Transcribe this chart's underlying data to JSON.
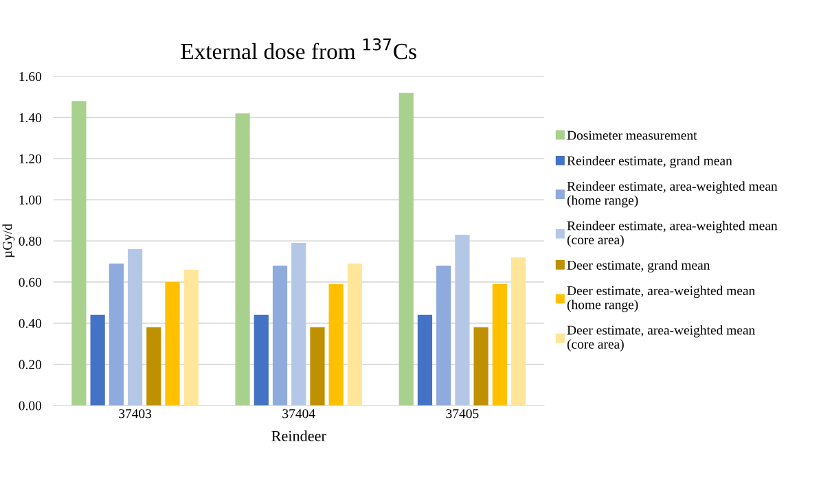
{
  "chart_data": {
    "type": "bar",
    "title": "External dose from $^{137}$Cs",
    "xlabel": "Reindeer",
    "ylabel": "µGy/d",
    "categories": [
      "37403",
      "37404",
      "37405"
    ],
    "series": [
      {
        "name": "Dosimeter measurement",
        "color": "#a9d18e",
        "values": [
          1.48,
          1.42,
          1.52
        ]
      },
      {
        "name": "Reindeer estimate, grand mean",
        "color": "#4472c4",
        "values": [
          0.44,
          0.44,
          0.44
        ]
      },
      {
        "name": "Reindeer estimate, area-weighted mean\n(home range)",
        "color": "#8faadc",
        "values": [
          0.69,
          0.68,
          0.68
        ]
      },
      {
        "name": "Reindeer estimate, area-weighted mean\n(core area)",
        "color": "#b4c7e7",
        "values": [
          0.76,
          0.79,
          0.83
        ]
      },
      {
        "name": "Deer estimate, grand mean",
        "color": "#bf9000",
        "values": [
          0.38,
          0.38,
          0.38
        ]
      },
      {
        "name": "Deer estimate, area-weighted mean\n(home range)",
        "color": "#ffc000",
        "values": [
          0.6,
          0.59,
          0.59
        ]
      },
      {
        "name": "Deer estimate, area-weighted mean\n(core area)",
        "color": "#ffe699",
        "values": [
          0.66,
          0.69,
          0.72
        ]
      }
    ],
    "ylim": [
      0,
      1.6
    ],
    "yticks": [
      {
        "value": 0,
        "label": "0.00"
      },
      {
        "value": 0.2,
        "label": "0.20"
      },
      {
        "value": 0.4,
        "label": "0.40"
      },
      {
        "value": 0.6,
        "label": "0.60"
      },
      {
        "value": 0.8,
        "label": "0.80"
      },
      {
        "value": 1.0,
        "label": "1.00"
      },
      {
        "value": 1.2,
        "label": "1.20"
      },
      {
        "value": 1.4,
        "label": "1.40"
      },
      {
        "value": 1.6,
        "label": "1.60"
      }
    ],
    "grid": "y",
    "legend": "right"
  }
}
